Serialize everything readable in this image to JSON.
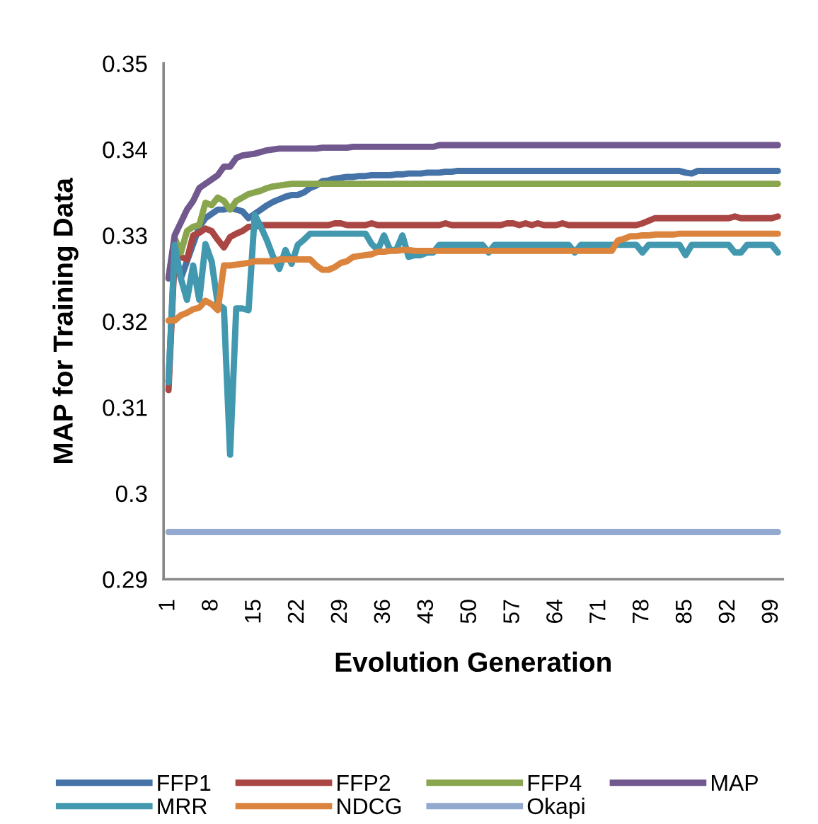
{
  "chart_data": {
    "type": "line",
    "xlabel": "Evolution Generation",
    "ylabel": "MAP for Training Data",
    "categories": [
      "1",
      null,
      null,
      null,
      null,
      null,
      null,
      "8",
      null,
      null,
      null,
      null,
      null,
      null,
      "15",
      null,
      null,
      null,
      null,
      null,
      null,
      "22",
      null,
      null,
      null,
      null,
      null,
      null,
      "29",
      null,
      null,
      null,
      null,
      null,
      null,
      "36",
      null,
      null,
      null,
      null,
      null,
      null,
      "43",
      null,
      null,
      null,
      null,
      null,
      null,
      "50",
      null,
      null,
      null,
      null,
      null,
      null,
      "57",
      null,
      null,
      null,
      null,
      null,
      null,
      "64",
      null,
      null,
      null,
      null,
      null,
      null,
      "71",
      null,
      null,
      null,
      null,
      null,
      null,
      "78",
      null,
      null,
      null,
      null,
      null,
      null,
      "85",
      null,
      null,
      null,
      null,
      null,
      null,
      "92",
      null,
      null,
      null,
      null,
      null,
      null,
      "99",
      null
    ],
    "ylim": [
      0.29,
      0.35
    ],
    "yticks": [
      0.29,
      0.3,
      0.31,
      0.32,
      0.33,
      0.34,
      0.35
    ],
    "grid": false,
    "legend": "bottom",
    "marker": "none",
    "line_style": "solid",
    "series": [
      {
        "name": "FFP1",
        "color": "#4572a7",
        "values": [
          0.313,
          0.328,
          0.325,
          0.327,
          0.329,
          0.331,
          0.332,
          0.3325,
          0.333,
          0.333,
          0.3332,
          0.333,
          0.3328,
          0.332,
          0.3325,
          0.333,
          0.3335,
          0.3339,
          0.3342,
          0.3345,
          0.3347,
          0.3347,
          0.335,
          0.3355,
          0.3358,
          0.3363,
          0.3364,
          0.3366,
          0.3367,
          0.3368,
          0.3368,
          0.3369,
          0.3369,
          0.337,
          0.337,
          0.337,
          0.337,
          0.3371,
          0.3371,
          0.3372,
          0.3372,
          0.3372,
          0.3373,
          0.3373,
          0.3373,
          0.3374,
          0.3374,
          0.3375,
          0.3375,
          0.3375,
          0.3375,
          0.3375,
          0.3375,
          0.3375,
          0.3375,
          0.3375,
          0.3375,
          0.3375,
          0.3375,
          0.3375,
          0.3375,
          0.3375,
          0.3375,
          0.3375,
          0.3375,
          0.3375,
          0.3375,
          0.3375,
          0.3375,
          0.3375,
          0.3375,
          0.3375,
          0.3375,
          0.3375,
          0.3375,
          0.3375,
          0.3375,
          0.3375,
          0.3375,
          0.3375,
          0.3375,
          0.3375,
          0.3375,
          0.3375,
          0.3373,
          0.3372,
          0.3375,
          0.3375,
          0.3375,
          0.3375,
          0.3375,
          0.3375,
          0.3375,
          0.3375,
          0.3375,
          0.3375,
          0.3375,
          0.3375,
          0.3375,
          0.3375
        ]
      },
      {
        "name": "FFP2",
        "color": "#aa4643",
        "values": [
          0.312,
          0.3278,
          0.3275,
          0.3272,
          0.33,
          0.3303,
          0.3308,
          0.3305,
          0.3295,
          0.3286,
          0.3298,
          0.3302,
          0.3305,
          0.331,
          0.331,
          0.3312,
          0.3312,
          0.3312,
          0.3312,
          0.3312,
          0.3312,
          0.3312,
          0.3312,
          0.3312,
          0.3312,
          0.3312,
          0.3312,
          0.3314,
          0.3314,
          0.3312,
          0.3312,
          0.3312,
          0.3312,
          0.3314,
          0.3312,
          0.3312,
          0.3312,
          0.3312,
          0.3312,
          0.3312,
          0.3312,
          0.3312,
          0.3312,
          0.3312,
          0.3312,
          0.3314,
          0.3312,
          0.3312,
          0.3312,
          0.3312,
          0.3312,
          0.3312,
          0.3312,
          0.3312,
          0.3312,
          0.3314,
          0.3314,
          0.3312,
          0.3314,
          0.3312,
          0.3314,
          0.3312,
          0.3312,
          0.3312,
          0.3314,
          0.3312,
          0.3312,
          0.3312,
          0.3312,
          0.3312,
          0.3312,
          0.3312,
          0.3312,
          0.3312,
          0.3312,
          0.3312,
          0.3312,
          0.3314,
          0.3317,
          0.332,
          0.332,
          0.332,
          0.332,
          0.332,
          0.332,
          0.332,
          0.332,
          0.332,
          0.332,
          0.332,
          0.332,
          0.332,
          0.3322,
          0.332,
          0.332,
          0.332,
          0.332,
          0.332,
          0.332,
          0.3322
        ]
      },
      {
        "name": "FFP4",
        "color": "#89a54e",
        "values": [
          0.325,
          0.3297,
          0.328,
          0.3305,
          0.331,
          0.3312,
          0.3338,
          0.3335,
          0.3344,
          0.334,
          0.333,
          0.334,
          0.3344,
          0.3348,
          0.335,
          0.3352,
          0.3355,
          0.3357,
          0.3358,
          0.3359,
          0.336,
          0.336,
          0.336,
          0.336,
          0.336,
          0.336,
          0.336,
          0.336,
          0.336,
          0.336,
          0.336,
          0.336,
          0.336,
          0.336,
          0.336,
          0.336,
          0.336,
          0.336,
          0.336,
          0.336,
          0.336,
          0.336,
          0.336,
          0.336,
          0.336,
          0.336,
          0.336,
          0.336,
          0.336,
          0.336,
          0.336,
          0.336,
          0.336,
          0.336,
          0.336,
          0.336,
          0.336,
          0.336,
          0.336,
          0.336,
          0.336,
          0.336,
          0.336,
          0.336,
          0.336,
          0.336,
          0.336,
          0.336,
          0.336,
          0.336,
          0.336,
          0.336,
          0.336,
          0.336,
          0.336,
          0.336,
          0.336,
          0.336,
          0.336,
          0.336,
          0.336,
          0.336,
          0.336,
          0.336,
          0.336,
          0.336,
          0.336,
          0.336,
          0.336,
          0.336,
          0.336,
          0.336,
          0.336,
          0.336,
          0.336,
          0.336,
          0.336,
          0.336,
          0.336,
          0.336
        ]
      },
      {
        "name": "MAP",
        "color": "#71588f",
        "values": [
          0.325,
          0.33,
          0.3315,
          0.333,
          0.334,
          0.3355,
          0.336,
          0.3365,
          0.337,
          0.338,
          0.338,
          0.339,
          0.3393,
          0.3394,
          0.3395,
          0.3397,
          0.3399,
          0.34,
          0.3401,
          0.3401,
          0.3401,
          0.3401,
          0.3401,
          0.3401,
          0.3401,
          0.3402,
          0.3402,
          0.3402,
          0.3402,
          0.3402,
          0.3403,
          0.3403,
          0.3403,
          0.3403,
          0.3403,
          0.3403,
          0.3403,
          0.3403,
          0.3403,
          0.3403,
          0.3403,
          0.3403,
          0.3403,
          0.3403,
          0.3405,
          0.3405,
          0.3405,
          0.3405,
          0.3405,
          0.3405,
          0.3405,
          0.3405,
          0.3405,
          0.3405,
          0.3405,
          0.3405,
          0.3405,
          0.3405,
          0.3405,
          0.3405,
          0.3405,
          0.3405,
          0.3405,
          0.3405,
          0.3405,
          0.3405,
          0.3405,
          0.3405,
          0.3405,
          0.3405,
          0.3405,
          0.3405,
          0.3405,
          0.3405,
          0.3405,
          0.3405,
          0.3405,
          0.3405,
          0.3405,
          0.3405,
          0.3405,
          0.3405,
          0.3405,
          0.3405,
          0.3405,
          0.3405,
          0.3405,
          0.3405,
          0.3405,
          0.3405,
          0.3405,
          0.3405,
          0.3405,
          0.3405,
          0.3405,
          0.3405,
          0.3405,
          0.3405,
          0.3405,
          0.3405
        ]
      },
      {
        "name": "MRR",
        "color": "#4198af",
        "values": [
          0.3129,
          0.3289,
          0.325,
          0.3225,
          0.3265,
          0.3225,
          0.329,
          0.327,
          0.322,
          0.3215,
          0.3045,
          0.3215,
          0.3215,
          0.3213,
          0.3324,
          0.331,
          0.3294,
          0.3275,
          0.3261,
          0.3283,
          0.3267,
          0.3289,
          0.3295,
          0.3302,
          0.3302,
          0.3302,
          0.3302,
          0.3302,
          0.3302,
          0.3302,
          0.3302,
          0.3302,
          0.3302,
          0.329,
          0.3283,
          0.33,
          0.3283,
          0.3283,
          0.33,
          0.3275,
          0.3277,
          0.3277,
          0.328,
          0.328,
          0.3289,
          0.3289,
          0.3289,
          0.3289,
          0.3289,
          0.3289,
          0.3289,
          0.3289,
          0.328,
          0.3289,
          0.3289,
          0.3289,
          0.3289,
          0.3289,
          0.3289,
          0.3289,
          0.3289,
          0.3289,
          0.3289,
          0.3289,
          0.3289,
          0.3289,
          0.328,
          0.3289,
          0.3289,
          0.3289,
          0.3289,
          0.3289,
          0.3289,
          0.3289,
          0.3289,
          0.3289,
          0.3289,
          0.328,
          0.3289,
          0.3289,
          0.3289,
          0.3289,
          0.3289,
          0.3289,
          0.3277,
          0.3289,
          0.3289,
          0.3289,
          0.3289,
          0.3289,
          0.3289,
          0.3289,
          0.328,
          0.328,
          0.3289,
          0.3289,
          0.3289,
          0.3289,
          0.3289,
          0.328
        ]
      },
      {
        "name": "NDCG",
        "color": "#db843d",
        "values": [
          0.3201,
          0.3201,
          0.3207,
          0.321,
          0.3214,
          0.3216,
          0.3224,
          0.322,
          0.3213,
          0.3265,
          0.3265,
          0.3266,
          0.3267,
          0.3268,
          0.327,
          0.327,
          0.327,
          0.327,
          0.3272,
          0.3272,
          0.3272,
          0.3272,
          0.3272,
          0.3272,
          0.3265,
          0.326,
          0.326,
          0.3263,
          0.3268,
          0.327,
          0.3275,
          0.3276,
          0.3277,
          0.3278,
          0.3281,
          0.3281,
          0.3282,
          0.3282,
          0.3283,
          0.3283,
          0.3282,
          0.3282,
          0.3282,
          0.3282,
          0.3282,
          0.3282,
          0.3282,
          0.3282,
          0.3282,
          0.3282,
          0.3282,
          0.3282,
          0.3282,
          0.3282,
          0.3282,
          0.3282,
          0.3282,
          0.3282,
          0.3282,
          0.3282,
          0.3282,
          0.3282,
          0.3282,
          0.3282,
          0.3282,
          0.3282,
          0.3282,
          0.3282,
          0.3282,
          0.3282,
          0.3282,
          0.3282,
          0.3282,
          0.3294,
          0.3296,
          0.3299,
          0.3299,
          0.33,
          0.33,
          0.3301,
          0.3301,
          0.3301,
          0.3301,
          0.3302,
          0.3302,
          0.3302,
          0.3302,
          0.3302,
          0.3302,
          0.3302,
          0.3302,
          0.3302,
          0.3302,
          0.3302,
          0.3302,
          0.3302,
          0.3302,
          0.3302,
          0.3302,
          0.3302
        ]
      },
      {
        "name": "Okapi",
        "color": "#93a9cf",
        "values": [
          0.2955,
          0.2955,
          0.2955,
          0.2955,
          0.2955,
          0.2955,
          0.2955,
          0.2955,
          0.2955,
          0.2955,
          0.2955,
          0.2955,
          0.2955,
          0.2955,
          0.2955,
          0.2955,
          0.2955,
          0.2955,
          0.2955,
          0.2955,
          0.2955,
          0.2955,
          0.2955,
          0.2955,
          0.2955,
          0.2955,
          0.2955,
          0.2955,
          0.2955,
          0.2955,
          0.2955,
          0.2955,
          0.2955,
          0.2955,
          0.2955,
          0.2955,
          0.2955,
          0.2955,
          0.2955,
          0.2955,
          0.2955,
          0.2955,
          0.2955,
          0.2955,
          0.2955,
          0.2955,
          0.2955,
          0.2955,
          0.2955,
          0.2955,
          0.2955,
          0.2955,
          0.2955,
          0.2955,
          0.2955,
          0.2955,
          0.2955,
          0.2955,
          0.2955,
          0.2955,
          0.2955,
          0.2955,
          0.2955,
          0.2955,
          0.2955,
          0.2955,
          0.2955,
          0.2955,
          0.2955,
          0.2955,
          0.2955,
          0.2955,
          0.2955,
          0.2955,
          0.2955,
          0.2955,
          0.2955,
          0.2955,
          0.2955,
          0.2955,
          0.2955,
          0.2955,
          0.2955,
          0.2955,
          0.2955,
          0.2955,
          0.2955,
          0.2955,
          0.2955,
          0.2955,
          0.2955,
          0.2955,
          0.2955,
          0.2955,
          0.2955,
          0.2955,
          0.2955,
          0.2955,
          0.2955,
          0.2955
        ]
      }
    ]
  }
}
